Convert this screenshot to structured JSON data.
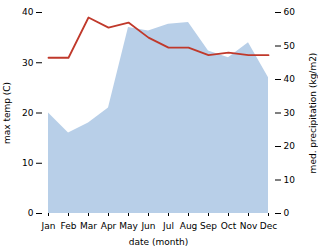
{
  "chart_data": {
    "type": "line",
    "xlabel": "date (month)",
    "ylabel": "max temp (C)",
    "y2label": "med. precipitation (kg/m2)",
    "categories": [
      "Jan",
      "Feb",
      "Mar",
      "Apr",
      "May",
      "Jun",
      "Jul",
      "Aug",
      "Sep",
      "Oct",
      "Nov",
      "Dec"
    ],
    "series": [
      {
        "type": "area",
        "axis": "y2",
        "color": "#b8cfe8",
        "values": [
          30.0,
          24.0,
          27.0,
          31.5,
          55.5,
          54.5,
          56.5,
          57.0,
          48.5,
          46.5,
          51.0,
          40.5
        ]
      },
      {
        "type": "line",
        "color": "#c0392b",
        "values": [
          31.0,
          31.0,
          39.0,
          37.0,
          38.0,
          35.0,
          33.0,
          33.0,
          31.5,
          32.0,
          31.5,
          31.5
        ]
      }
    ],
    "ylim": [
      0,
      40
    ],
    "yticks": [
      0,
      10,
      20,
      30,
      40
    ],
    "y2lim": [
      0,
      60
    ],
    "y2ticks": [
      0,
      10,
      20,
      30,
      40,
      50,
      60
    ],
    "grid": false
  }
}
